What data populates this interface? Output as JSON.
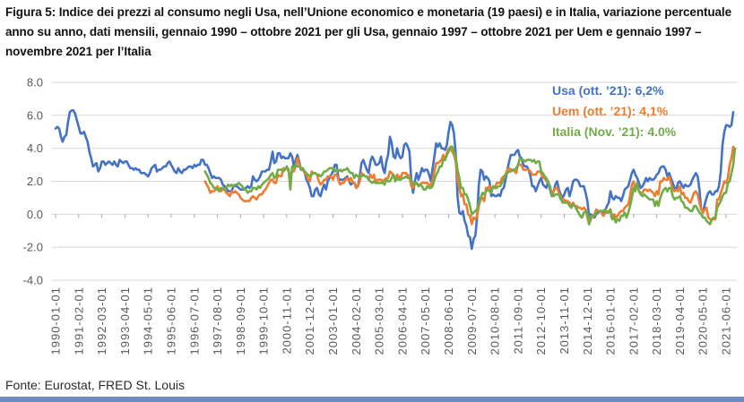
{
  "title": "Figura 5: Indice dei prezzi al consumo negli Usa, nell’Unione economico e monetaria (19 paesi) e in Italia, variazione percentuale anno su anno, dati mensili, gennaio 1990 – ottobre 2021 per gli Usa, gennaio 1997 – ottobre 2021 per Uem e gennaio 1997 – novembre 2021 per l’Italia",
  "footer": {
    "source": "Fonte: Eurostat, FRED St. Louis"
  },
  "bottom_bar_color": "#6E8CC3",
  "colors": {
    "usa": "#4472C4",
    "uem": "#ED7D31",
    "italia": "#70AD47",
    "gridline": "#D9D9D9",
    "tick": "#A6A6A6",
    "axis_text": "#595959"
  },
  "chart_data": {
    "type": "line",
    "title": "",
    "xlabel": "",
    "ylabel": "",
    "grid": true,
    "legend_position": "top-right",
    "ylim": [
      -4.0,
      8.0
    ],
    "y_ticks": [
      {
        "value": 8.0,
        "label": "8.0"
      },
      {
        "value": 6.0,
        "label": "6.0"
      },
      {
        "value": 4.0,
        "label": "4.0"
      },
      {
        "value": 2.0,
        "label": "2.0"
      },
      {
        "value": 0.0,
        "label": "0.0"
      },
      {
        "value": -2.0,
        "label": "-2.0"
      },
      {
        "value": -4.0,
        "label": "-4.0"
      }
    ],
    "x_start": "1990-01",
    "x_tick_interval_months": 13,
    "x_tick_labels": [
      "1990-01-01",
      "1991-02-01",
      "1992-03-01",
      "1993-04-01",
      "1994-05-01",
      "1995-06-01",
      "1996-07-01",
      "1997-08-01",
      "1998-09-01",
      "1999-10-01",
      "2000-11-01",
      "2001-12-01",
      "2003-01-01",
      "2004-02-01",
      "2005-03-01",
      "2006-04-01",
      "2007-05-01",
      "2008-06-01",
      "2009-07-01",
      "2010-08-01",
      "2011-09-01",
      "2012-10-01",
      "2013-11-01",
      "2014-12-01",
      "2016-01-01",
      "2017-02-01",
      "2018-03-01",
      "2019-04-01",
      "2020-05-01",
      "2021-06-01"
    ],
    "legend": [
      {
        "label": "Usa (ott. ’21): 6,2%",
        "color": "#4472C4"
      },
      {
        "label": "Uem (ott. ’21): 4,1%",
        "color": "#ED7D31"
      },
      {
        "label": "Italia (Nov. ’21): 4.0%",
        "color": "#70AD47"
      }
    ],
    "series": [
      {
        "name": "Usa",
        "color": "#4472C4",
        "start": "1990-01",
        "start_month": 0,
        "values": [
          5.2,
          5.3,
          5.2,
          4.7,
          4.4,
          4.7,
          4.8,
          5.6,
          6.2,
          6.3,
          6.3,
          6.1,
          5.7,
          5.3,
          4.9,
          4.9,
          5.0,
          4.7,
          4.4,
          3.8,
          3.4,
          2.9,
          3.0,
          3.1,
          2.6,
          2.8,
          3.2,
          3.2,
          3.0,
          3.1,
          3.2,
          3.1,
          3.0,
          3.2,
          3.0,
          2.9,
          3.3,
          3.2,
          3.1,
          3.2,
          3.2,
          3.0,
          2.8,
          2.8,
          2.7,
          2.8,
          2.7,
          2.7,
          2.5,
          2.5,
          2.5,
          2.4,
          2.3,
          2.5,
          2.8,
          2.9,
          3.0,
          2.6,
          2.7,
          2.7,
          2.8,
          2.9,
          2.9,
          3.1,
          3.2,
          3.0,
          2.8,
          2.6,
          2.5,
          2.8,
          2.6,
          2.5,
          2.7,
          2.7,
          2.8,
          2.9,
          2.9,
          2.8,
          3.0,
          2.9,
          3.0,
          3.0,
          3.3,
          3.3,
          3.0,
          3.0,
          2.8,
          2.5,
          2.2,
          2.3,
          2.2,
          2.2,
          2.2,
          2.1,
          1.8,
          1.7,
          1.6,
          1.4,
          1.4,
          1.4,
          1.7,
          1.7,
          1.7,
          1.6,
          1.5,
          1.5,
          1.5,
          1.6,
          1.7,
          1.6,
          1.7,
          2.3,
          2.1,
          2.0,
          2.1,
          2.3,
          2.6,
          2.6,
          2.6,
          2.7,
          2.7,
          3.2,
          3.8,
          3.1,
          3.2,
          3.7,
          3.7,
          3.4,
          3.5,
          3.4,
          3.4,
          3.4,
          3.7,
          3.5,
          2.9,
          3.3,
          3.6,
          3.2,
          2.7,
          2.7,
          2.6,
          2.1,
          1.9,
          1.6,
          1.1,
          1.1,
          1.5,
          1.6,
          1.2,
          1.1,
          1.5,
          1.8,
          1.5,
          2.0,
          2.2,
          2.4,
          2.6,
          3.0,
          3.0,
          2.2,
          2.1,
          2.1,
          2.1,
          2.2,
          2.3,
          2.0,
          1.8,
          1.9,
          1.9,
          1.7,
          1.7,
          2.3,
          3.1,
          3.3,
          3.0,
          2.7,
          2.5,
          3.2,
          3.5,
          3.3,
          3.0,
          3.0,
          3.1,
          3.5,
          2.8,
          2.5,
          3.2,
          3.6,
          4.7,
          4.3,
          3.5,
          3.4,
          4.0,
          3.6,
          3.4,
          3.5,
          4.2,
          4.3,
          4.1,
          3.8,
          2.1,
          1.3,
          2.0,
          2.5,
          2.1,
          2.4,
          2.8,
          2.6,
          2.7,
          2.7,
          2.4,
          2.0,
          2.8,
          3.5,
          4.3,
          4.1,
          4.3,
          4.0,
          4.0,
          3.9,
          4.2,
          5.0,
          5.6,
          5.4,
          4.9,
          3.7,
          1.1,
          0.1,
          0.0,
          0.2,
          -0.4,
          -0.7,
          -1.3,
          -1.4,
          -2.1,
          -1.5,
          -1.3,
          -0.2,
          1.8,
          2.7,
          2.6,
          2.1,
          2.3,
          2.2,
          2.0,
          1.1,
          1.2,
          1.1,
          1.1,
          1.2,
          1.1,
          1.5,
          1.6,
          2.1,
          2.7,
          3.2,
          3.6,
          3.6,
          3.6,
          3.8,
          3.9,
          3.5,
          3.4,
          3.0,
          2.9,
          2.9,
          2.7,
          2.3,
          1.7,
          1.7,
          1.4,
          1.7,
          2.0,
          2.2,
          1.8,
          1.7,
          1.6,
          2.0,
          1.5,
          1.1,
          1.4,
          1.8,
          2.0,
          1.5,
          1.2,
          1.0,
          1.2,
          1.5,
          1.6,
          1.1,
          1.5,
          2.0,
          2.1,
          2.1,
          2.0,
          1.7,
          1.7,
          1.7,
          1.3,
          0.8,
          -0.1,
          0.0,
          -0.1,
          -0.2,
          0.0,
          0.1,
          0.2,
          0.2,
          0.0,
          0.2,
          0.5,
          0.7,
          1.4,
          1.0,
          0.9,
          1.1,
          1.0,
          1.0,
          0.8,
          1.1,
          1.5,
          1.6,
          1.7,
          2.1,
          2.5,
          2.7,
          2.4,
          2.2,
          1.9,
          1.6,
          1.7,
          1.9,
          2.2,
          2.0,
          2.2,
          2.1,
          2.1,
          2.2,
          2.4,
          2.5,
          2.8,
          2.9,
          2.9,
          2.7,
          2.3,
          2.5,
          2.2,
          1.9,
          1.6,
          1.5,
          1.9,
          2.0,
          1.8,
          1.6,
          1.8,
          1.7,
          1.7,
          1.8,
          2.1,
          2.3,
          2.5,
          2.3,
          1.5,
          0.3,
          0.1,
          0.6,
          1.0,
          1.3,
          1.4,
          1.2,
          1.2,
          1.4,
          1.4,
          1.7,
          2.6,
          4.2,
          5.0,
          5.4,
          5.4,
          5.3,
          5.4,
          6.2
        ]
      },
      {
        "name": "Uem",
        "color": "#ED7D31",
        "start": "1997-01",
        "start_month": 84,
        "values": [
          2.0,
          1.8,
          1.6,
          1.3,
          1.4,
          1.4,
          1.5,
          1.7,
          1.5,
          1.4,
          1.5,
          1.5,
          1.3,
          1.2,
          1.1,
          1.4,
          1.3,
          1.4,
          1.3,
          1.2,
          1.0,
          0.9,
          0.8,
          0.8,
          0.8,
          0.8,
          1.0,
          1.1,
          1.0,
          0.9,
          1.1,
          1.2,
          1.2,
          1.4,
          1.5,
          1.7,
          1.9,
          2.1,
          2.1,
          1.9,
          1.9,
          2.4,
          2.3,
          2.3,
          2.8,
          2.7,
          2.9,
          2.6,
          2.4,
          2.6,
          2.6,
          2.9,
          3.4,
          3.0,
          2.8,
          2.7,
          2.5,
          2.4,
          2.1,
          2.0,
          2.6,
          2.5,
          2.5,
          2.4,
          2.0,
          1.8,
          1.9,
          2.1,
          2.1,
          2.3,
          2.3,
          2.3,
          2.1,
          2.4,
          2.4,
          2.1,
          1.8,
          1.9,
          1.9,
          2.1,
          2.2,
          2.0,
          2.2,
          2.0,
          1.9,
          1.6,
          1.7,
          2.0,
          2.5,
          2.4,
          2.3,
          2.3,
          2.1,
          2.4,
          2.2,
          2.4,
          1.9,
          2.1,
          2.1,
          2.1,
          2.0,
          2.1,
          2.2,
          2.2,
          2.6,
          2.5,
          2.3,
          2.2,
          2.4,
          2.3,
          2.2,
          2.5,
          2.5,
          2.5,
          2.4,
          2.3,
          1.7,
          1.6,
          1.9,
          1.9,
          1.8,
          1.8,
          1.9,
          1.9,
          1.9,
          1.9,
          1.8,
          1.7,
          2.1,
          2.6,
          3.1,
          3.1,
          3.2,
          3.3,
          3.6,
          3.3,
          3.7,
          4.0,
          4.0,
          3.8,
          3.6,
          3.2,
          2.1,
          1.6,
          1.1,
          1.2,
          0.6,
          0.6,
          0.0,
          -0.1,
          -0.6,
          -0.2,
          -0.3,
          -0.1,
          0.5,
          0.9,
          1.0,
          0.8,
          1.6,
          1.6,
          1.7,
          1.5,
          1.7,
          1.6,
          1.9,
          1.9,
          1.9,
          2.2,
          2.3,
          2.4,
          2.7,
          2.8,
          2.7,
          2.7,
          2.6,
          2.5,
          3.0,
          3.0,
          3.0,
          2.7,
          2.7,
          2.7,
          2.7,
          2.6,
          2.4,
          2.4,
          2.4,
          2.6,
          2.6,
          2.5,
          2.2,
          2.2,
          2.0,
          1.9,
          1.7,
          1.2,
          1.4,
          1.6,
          1.6,
          1.3,
          1.1,
          0.7,
          0.9,
          0.8,
          0.8,
          0.7,
          0.5,
          0.7,
          0.5,
          0.5,
          0.4,
          0.4,
          0.3,
          0.4,
          0.3,
          -0.2,
          -0.6,
          -0.3,
          -0.1,
          0.0,
          0.3,
          0.2,
          0.2,
          0.1,
          -0.1,
          0.1,
          0.1,
          0.2,
          0.3,
          -0.2,
          0.0,
          -0.2,
          -0.1,
          0.1,
          0.2,
          0.2,
          0.4,
          0.5,
          0.6,
          1.1,
          1.8,
          2.0,
          1.5,
          1.9,
          1.4,
          1.3,
          1.3,
          1.5,
          1.5,
          1.4,
          1.5,
          1.4,
          1.3,
          1.1,
          1.4,
          1.2,
          2.0,
          2.0,
          2.2,
          2.1,
          2.1,
          2.3,
          1.9,
          1.5,
          1.4,
          1.5,
          1.4,
          1.7,
          1.2,
          1.3,
          1.0,
          1.0,
          0.8,
          0.7,
          1.0,
          1.3,
          1.4,
          1.2,
          0.7,
          0.3,
          0.1,
          0.3,
          0.4,
          -0.2,
          -0.3,
          -0.3,
          -0.3,
          -0.3,
          0.9,
          0.9,
          1.3,
          1.6,
          2.0,
          1.9,
          2.2,
          3.0,
          3.4,
          4.1
        ]
      },
      {
        "name": "Italia",
        "color": "#70AD47",
        "start": "1997-01",
        "start_month": 84,
        "values": [
          2.6,
          2.4,
          2.2,
          1.9,
          1.8,
          1.6,
          1.6,
          1.5,
          1.4,
          1.6,
          1.6,
          1.5,
          1.6,
          1.8,
          1.7,
          1.8,
          1.7,
          1.8,
          1.8,
          1.9,
          1.8,
          1.7,
          1.5,
          1.5,
          1.3,
          1.4,
          1.4,
          1.6,
          1.6,
          1.5,
          1.7,
          1.6,
          1.8,
          1.9,
          2.0,
          2.1,
          2.2,
          2.4,
          2.5,
          2.2,
          2.3,
          2.7,
          2.7,
          2.7,
          2.6,
          2.7,
          2.9,
          2.7,
          1.5,
          2.9,
          2.8,
          3.0,
          2.9,
          2.9,
          2.8,
          2.8,
          2.6,
          2.5,
          2.4,
          2.3,
          2.4,
          2.5,
          2.5,
          2.4,
          2.4,
          2.3,
          2.4,
          2.6,
          2.6,
          2.7,
          2.8,
          2.8,
          2.8,
          2.6,
          2.7,
          2.6,
          2.7,
          2.6,
          2.7,
          2.7,
          2.8,
          2.6,
          2.5,
          2.5,
          2.2,
          2.4,
          2.3,
          2.3,
          2.3,
          2.4,
          2.3,
          2.3,
          2.1,
          2.0,
          1.9,
          2.0,
          1.9,
          1.9,
          1.9,
          1.9,
          1.9,
          1.8,
          2.1,
          2.0,
          2.0,
          2.2,
          2.4,
          2.0,
          2.2,
          2.1,
          2.1,
          2.2,
          2.2,
          2.3,
          2.2,
          2.2,
          2.1,
          1.8,
          1.8,
          1.9,
          1.7,
          1.8,
          1.7,
          1.5,
          1.5,
          1.7,
          1.6,
          1.6,
          1.7,
          2.1,
          2.4,
          2.6,
          2.9,
          2.9,
          3.3,
          3.3,
          3.6,
          3.8,
          4.1,
          4.1,
          3.8,
          3.5,
          2.7,
          2.2,
          1.6,
          1.6,
          1.2,
          1.2,
          0.9,
          0.5,
          0.0,
          0.1,
          0.2,
          0.3,
          0.7,
          1.0,
          1.3,
          1.2,
          1.4,
          1.5,
          1.4,
          1.3,
          1.7,
          1.6,
          1.6,
          1.7,
          1.7,
          1.9,
          2.1,
          2.4,
          2.5,
          2.6,
          2.6,
          2.7,
          2.7,
          2.8,
          3.0,
          3.4,
          3.3,
          3.3,
          3.2,
          3.3,
          3.3,
          3.3,
          3.2,
          3.3,
          3.1,
          3.2,
          3.2,
          2.6,
          2.5,
          2.3,
          2.2,
          1.9,
          1.7,
          1.1,
          1.1,
          1.2,
          1.2,
          1.2,
          0.9,
          0.8,
          0.7,
          0.7,
          0.7,
          0.5,
          0.4,
          0.6,
          0.5,
          0.3,
          0.1,
          -0.1,
          -0.2,
          0.1,
          0.2,
          0.0,
          -0.6,
          -0.1,
          -0.1,
          -0.1,
          0.1,
          0.2,
          0.2,
          0.2,
          0.2,
          0.3,
          0.1,
          0.1,
          0.3,
          -0.3,
          -0.2,
          -0.5,
          -0.3,
          -0.4,
          -0.1,
          -0.1,
          0.1,
          -0.2,
          0.1,
          0.5,
          1.0,
          1.6,
          1.4,
          1.9,
          1.4,
          1.2,
          1.1,
          1.2,
          1.1,
          1.0,
          0.9,
          0.9,
          0.9,
          0.5,
          0.8,
          0.5,
          1.0,
          1.3,
          1.5,
          1.6,
          1.4,
          1.6,
          1.6,
          1.1,
          0.9,
          1.0,
          1.0,
          1.1,
          0.8,
          0.7,
          0.4,
          0.4,
          0.3,
          0.2,
          0.2,
          0.5,
          0.5,
          0.3,
          0.1,
          0.0,
          -0.2,
          -0.2,
          -0.4,
          -0.5,
          -0.6,
          -0.3,
          -0.2,
          -0.2,
          0.4,
          0.6,
          0.8,
          1.1,
          1.3,
          1.3,
          1.9,
          2.0,
          2.5,
          3.0,
          4.0
        ]
      }
    ]
  }
}
